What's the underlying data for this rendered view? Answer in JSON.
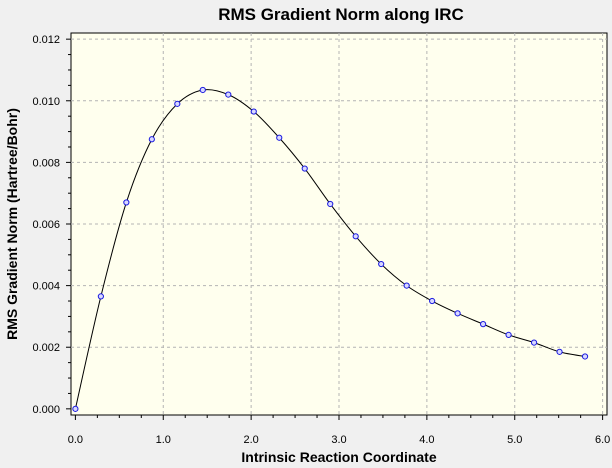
{
  "chart_data": {
    "type": "line",
    "title": "RMS Gradient Norm along IRC",
    "xlabel": "Intrinsic Reaction Coordinate",
    "ylabel": "RMS Gradient Norm (Hartree/Bohr)",
    "xlim": [
      -0.05,
      6.05
    ],
    "ylim": [
      -0.0002,
      0.0122
    ],
    "x_ticks": [
      "0.0",
      "1.0",
      "2.0",
      "3.0",
      "4.0",
      "5.0",
      "6.0"
    ],
    "y_ticks": [
      "0.000",
      "0.002",
      "0.004",
      "0.006",
      "0.008",
      "0.010",
      "0.012"
    ],
    "grid": true,
    "series": [
      {
        "x": [
          0.0,
          0.29,
          0.58,
          0.87,
          1.16,
          1.45,
          1.74,
          2.03,
          2.32,
          2.61,
          2.9,
          3.19,
          3.48,
          3.77,
          4.06,
          4.35,
          4.64,
          4.93,
          5.22,
          5.51,
          5.8
        ],
        "y": [
          0.0,
          0.00365,
          0.0067,
          0.00875,
          0.0099,
          0.01035,
          0.0102,
          0.00965,
          0.0088,
          0.0078,
          0.00665,
          0.0056,
          0.0047,
          0.004,
          0.0035,
          0.0031,
          0.00275,
          0.0024,
          0.00215,
          0.00185,
          0.0017
        ]
      }
    ],
    "colors": {
      "background": "#f0f0f0",
      "plot_area": "#ffffee",
      "grid": "#b4b4b4",
      "line": "#000000",
      "marker_fill": "#d8d8ff",
      "marker_stroke": "#1a1ae0"
    }
  }
}
